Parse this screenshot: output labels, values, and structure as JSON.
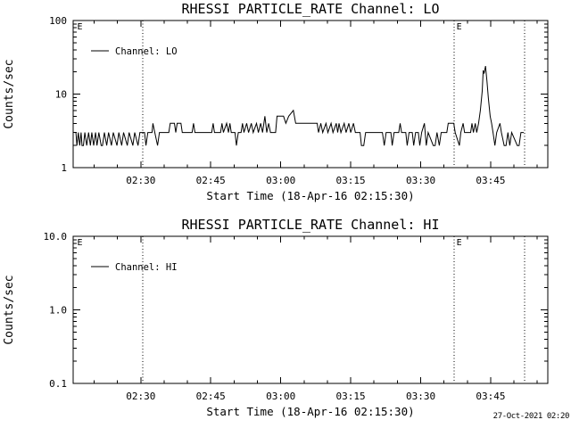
{
  "window": {
    "background": "#ffffff",
    "foreground": "#000000"
  },
  "footer": {
    "timestamp": "27-Oct-2021 02:20"
  },
  "chart_data": [
    {
      "type": "line",
      "title": "RHESSI PARTICLE_RATE Channel: LO",
      "xlabel": "Start Time (18-Apr-16 02:15:30)",
      "ylabel": "Counts/sec",
      "yscale": "log",
      "ylim": [
        1,
        100
      ],
      "yticks": [
        {
          "value": 100,
          "label": "100"
        },
        {
          "value": 10,
          "label": "10"
        },
        {
          "value": 1,
          "label": "1"
        }
      ],
      "xlim_minutes": [
        0,
        101.75
      ],
      "xticks_minutes": [
        {
          "minute": 14.5,
          "label": "02:30"
        },
        {
          "minute": 29.5,
          "label": "02:45"
        },
        {
          "minute": 44.5,
          "label": "03:00"
        },
        {
          "minute": 59.5,
          "label": "03:15"
        },
        {
          "minute": 74.5,
          "label": "03:30"
        },
        {
          "minute": 89.5,
          "label": "03:45"
        }
      ],
      "xminor_step_minutes": 5,
      "grid": false,
      "legend": {
        "label": "Channel: LO",
        "position": "upper-left"
      },
      "event_markers": [
        {
          "minute": 0.38,
          "label": "E",
          "line": false
        },
        {
          "minute": 14.92,
          "label": "",
          "line": true
        },
        {
          "minute": 81.68,
          "label": "E",
          "line": true
        },
        {
          "minute": 96.79,
          "label": "",
          "line": true
        }
      ],
      "series": [
        {
          "name": "Channel: LO",
          "units": "counts/sec",
          "points_minutes_value": [
            [
              0.3,
              3
            ],
            [
              0.6,
              3
            ],
            [
              0.8,
              2
            ],
            [
              1.1,
              3
            ],
            [
              1.4,
              2
            ],
            [
              1.7,
              3
            ],
            [
              1.9,
              2
            ],
            [
              2.2,
              2
            ],
            [
              2.5,
              3
            ],
            [
              2.9,
              2
            ],
            [
              3.3,
              3
            ],
            [
              3.7,
              2
            ],
            [
              4.0,
              3
            ],
            [
              4.4,
              2
            ],
            [
              4.8,
              3
            ],
            [
              5.1,
              2
            ],
            [
              5.5,
              3
            ],
            [
              6.0,
              2
            ],
            [
              6.3,
              2
            ],
            [
              6.7,
              3
            ],
            [
              7.2,
              2
            ],
            [
              7.6,
              3
            ],
            [
              8.2,
              2
            ],
            [
              8.6,
              3
            ],
            [
              9.4,
              2
            ],
            [
              9.8,
              3
            ],
            [
              10.4,
              2
            ],
            [
              10.8,
              3
            ],
            [
              11.6,
              2
            ],
            [
              12.0,
              3
            ],
            [
              12.8,
              2
            ],
            [
              13.2,
              3
            ],
            [
              13.9,
              2
            ],
            [
              14.3,
              3
            ],
            [
              15.3,
              3
            ],
            [
              15.6,
              2
            ],
            [
              16.0,
              3
            ],
            [
              16.9,
              3
            ],
            [
              17.1,
              4
            ],
            [
              17.5,
              3
            ],
            [
              18.1,
              2
            ],
            [
              18.5,
              3
            ],
            [
              19.3,
              3
            ],
            [
              20.5,
              3
            ],
            [
              20.8,
              4
            ],
            [
              21.7,
              4
            ],
            [
              22.0,
              3
            ],
            [
              22.3,
              4
            ],
            [
              23.1,
              4
            ],
            [
              23.4,
              3
            ],
            [
              25.5,
              3
            ],
            [
              25.8,
              4
            ],
            [
              26.1,
              3
            ],
            [
              29.7,
              3
            ],
            [
              30.0,
              4
            ],
            [
              30.3,
              3
            ],
            [
              31.6,
              3
            ],
            [
              31.9,
              4
            ],
            [
              32.2,
              3
            ],
            [
              32.9,
              4
            ],
            [
              33.3,
              3
            ],
            [
              33.6,
              4
            ],
            [
              33.9,
              3
            ],
            [
              34.7,
              3
            ],
            [
              35.0,
              2
            ],
            [
              35.4,
              3
            ],
            [
              36.0,
              3
            ],
            [
              36.3,
              4
            ],
            [
              36.6,
              3
            ],
            [
              37.2,
              4
            ],
            [
              37.6,
              3
            ],
            [
              38.2,
              4
            ],
            [
              38.6,
              3
            ],
            [
              39.3,
              4
            ],
            [
              39.7,
              3
            ],
            [
              40.2,
              4
            ],
            [
              40.6,
              3
            ],
            [
              41.1,
              5
            ],
            [
              41.5,
              3
            ],
            [
              41.9,
              4
            ],
            [
              42.3,
              3
            ],
            [
              43.4,
              3
            ],
            [
              43.7,
              5
            ],
            [
              45.1,
              5
            ],
            [
              45.6,
              4
            ],
            [
              46.2,
              5
            ],
            [
              47.2,
              6
            ],
            [
              47.7,
              4
            ],
            [
              52.3,
              4
            ],
            [
              52.6,
              3
            ],
            [
              53.1,
              4
            ],
            [
              53.5,
              3
            ],
            [
              54.2,
              4
            ],
            [
              54.6,
              3
            ],
            [
              55.3,
              4
            ],
            [
              55.7,
              3
            ],
            [
              56.4,
              4
            ],
            [
              56.7,
              3
            ],
            [
              57.0,
              4
            ],
            [
              57.4,
              3
            ],
            [
              58.1,
              4
            ],
            [
              58.5,
              3
            ],
            [
              59.1,
              4
            ],
            [
              59.5,
              3
            ],
            [
              60.1,
              4
            ],
            [
              60.5,
              3
            ],
            [
              61.5,
              3
            ],
            [
              61.8,
              2
            ],
            [
              62.3,
              2
            ],
            [
              62.7,
              3
            ],
            [
              66.3,
              3
            ],
            [
              66.7,
              2
            ],
            [
              67.1,
              3
            ],
            [
              68.1,
              3
            ],
            [
              68.4,
              2
            ],
            [
              68.8,
              3
            ],
            [
              69.8,
              3
            ],
            [
              70.1,
              4
            ],
            [
              70.4,
              3
            ],
            [
              71.3,
              3
            ],
            [
              71.6,
              2
            ],
            [
              72.0,
              3
            ],
            [
              72.7,
              3
            ],
            [
              73.0,
              2
            ],
            [
              73.4,
              3
            ],
            [
              74.0,
              3
            ],
            [
              74.3,
              2
            ],
            [
              74.7,
              3
            ],
            [
              75.3,
              4
            ],
            [
              75.7,
              2
            ],
            [
              76.1,
              3
            ],
            [
              77.2,
              2
            ],
            [
              77.6,
              2
            ],
            [
              78.0,
              3
            ],
            [
              78.5,
              2
            ],
            [
              78.9,
              3
            ],
            [
              80.1,
              3
            ],
            [
              80.4,
              4
            ],
            [
              81.6,
              4
            ],
            [
              81.9,
              3
            ],
            [
              82.8,
              2
            ],
            [
              83.1,
              3
            ],
            [
              83.6,
              4
            ],
            [
              83.9,
              3
            ],
            [
              85.2,
              3
            ],
            [
              85.5,
              4
            ],
            [
              85.8,
              3
            ],
            [
              86.2,
              4
            ],
            [
              86.5,
              3
            ],
            [
              86.9,
              4
            ],
            [
              87.3,
              6
            ],
            [
              87.7,
              11
            ],
            [
              87.9,
              21
            ],
            [
              88.1,
              19
            ],
            [
              88.4,
              24
            ],
            [
              88.7,
              15
            ],
            [
              89.0,
              9
            ],
            [
              89.4,
              5
            ],
            [
              89.7,
              4
            ],
            [
              90.0,
              3
            ],
            [
              90.4,
              2
            ],
            [
              90.8,
              3
            ],
            [
              91.5,
              4
            ],
            [
              91.8,
              3
            ],
            [
              92.4,
              2
            ],
            [
              92.8,
              2
            ],
            [
              93.2,
              3
            ],
            [
              93.6,
              2
            ],
            [
              94.0,
              3
            ],
            [
              95.2,
              2
            ],
            [
              95.6,
              2
            ],
            [
              96.0,
              3
            ],
            [
              96.6,
              3
            ]
          ]
        }
      ]
    },
    {
      "type": "line",
      "title": "RHESSI PARTICLE_RATE Channel: HI",
      "xlabel": "Start Time (18-Apr-16 02:15:30)",
      "ylabel": "Counts/sec",
      "yscale": "log",
      "ylim": [
        0.1,
        10.0
      ],
      "yticks": [
        {
          "value": 10,
          "label": "10.0"
        },
        {
          "value": 1,
          "label": "1.0"
        },
        {
          "value": 0.1,
          "label": "0.1"
        }
      ],
      "xlim_minutes": [
        0,
        101.75
      ],
      "xticks_minutes": [
        {
          "minute": 14.5,
          "label": "02:30"
        },
        {
          "minute": 29.5,
          "label": "02:45"
        },
        {
          "minute": 44.5,
          "label": "03:00"
        },
        {
          "minute": 59.5,
          "label": "03:15"
        },
        {
          "minute": 74.5,
          "label": "03:30"
        },
        {
          "minute": 89.5,
          "label": "03:45"
        }
      ],
      "xminor_step_minutes": 5,
      "grid": false,
      "legend": {
        "label": "Channel: HI",
        "position": "upper-left"
      },
      "event_markers": [
        {
          "minute": 0.38,
          "label": "E",
          "line": false
        },
        {
          "minute": 14.92,
          "label": "",
          "line": true
        },
        {
          "minute": 81.68,
          "label": "E",
          "line": true
        },
        {
          "minute": 96.79,
          "label": "",
          "line": true
        }
      ],
      "series": [
        {
          "name": "Channel: HI",
          "units": "counts/sec",
          "points_minutes_value": []
        }
      ]
    }
  ]
}
